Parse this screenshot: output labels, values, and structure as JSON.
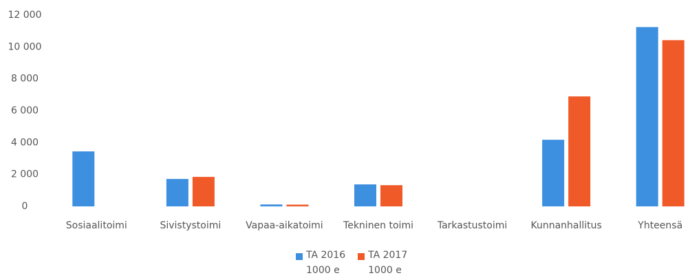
{
  "chart_data": {
    "type": "bar",
    "categories": [
      "Sosiaalitoimi",
      "Sivistystoimi",
      "Vapaa-aikatoimi",
      "Tekninen toimi",
      "Tarkastustoimi",
      "Kunnanhallitus",
      "Yhteensä"
    ],
    "series": [
      {
        "name": "TA 2016\n1000 e",
        "color": "#3d8fe0",
        "values": [
          3450,
          1720,
          120,
          1380,
          0,
          4180,
          11250
        ]
      },
      {
        "name": "TA 2017\n1000 e",
        "color": "#f05a28",
        "values": [
          0,
          1850,
          110,
          1330,
          0,
          6900,
          10430
        ]
      }
    ],
    "ylim": [
      0,
      12000
    ],
    "yticks": [
      0,
      {
        "value": 2000,
        "label": "2 000"
      },
      {
        "value": 4000,
        "label": "4 000"
      },
      {
        "value": 6000,
        "label": "6 000"
      },
      {
        "value": 8000,
        "label": "8 000"
      },
      {
        "value": 10000,
        "label": "10 000"
      },
      {
        "value": 12000,
        "label": "12 000"
      }
    ],
    "grid": false
  }
}
